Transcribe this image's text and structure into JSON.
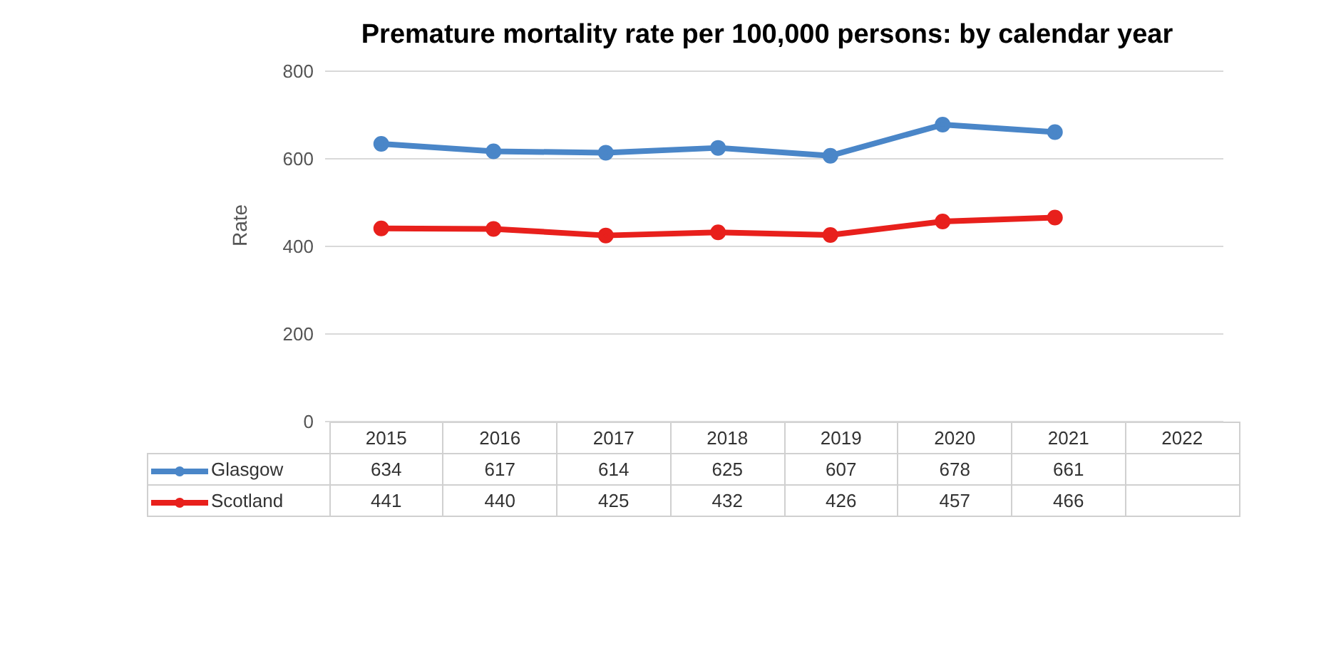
{
  "chart_data": {
    "type": "line",
    "title": "Premature mortality rate per 100,000 persons: by calendar year",
    "ylabel": "Rate",
    "categories": [
      "2015",
      "2016",
      "2017",
      "2018",
      "2019",
      "2020",
      "2021",
      "2022"
    ],
    "series": [
      {
        "name": "Glasgow",
        "color": "#4a86c8",
        "values": [
          634,
          617,
          614,
          625,
          607,
          678,
          661,
          null
        ]
      },
      {
        "name": "Scotland",
        "color": "#e8201c",
        "values": [
          441,
          440,
          425,
          432,
          426,
          457,
          466,
          null
        ]
      }
    ],
    "ylim": [
      0,
      800
    ],
    "yticks": [
      0,
      200,
      400,
      600,
      800
    ],
    "grid": "y",
    "legend": "bottom",
    "marker": "circle",
    "line_style": "solid",
    "data_labels": true
  }
}
